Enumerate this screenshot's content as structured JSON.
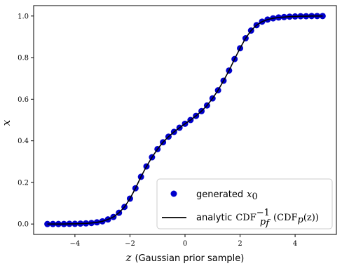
{
  "chart_data": {
    "type": "scatter",
    "xlabel_var": "z",
    "xlabel_text": "(Gaussian prior sample)",
    "ylabel": "x",
    "xlim": [
      -5.5,
      5.5
    ],
    "ylim": [
      -0.05,
      1.05
    ],
    "xticks": [
      -4,
      -2,
      0,
      2,
      4
    ],
    "xtick_labels": [
      "−4",
      "−2",
      "0",
      "2",
      "4"
    ],
    "yticks": [
      0.0,
      0.2,
      0.4,
      0.6,
      0.8,
      1.0
    ],
    "ytick_labels": [
      "0.0",
      "0.2",
      "0.4",
      "0.6",
      "0.8",
      "1.0"
    ],
    "grid": false,
    "legend_position": "bottom-right",
    "series": [
      {
        "name": "generated x0",
        "kind": "scatter",
        "color": "#0000cc",
        "x": [
          -5.0,
          -4.8,
          -4.6,
          -4.4,
          -4.2,
          -4.0,
          -3.8,
          -3.6,
          -3.4,
          -3.2,
          -3.0,
          -2.8,
          -2.6,
          -2.4,
          -2.2,
          -2.0,
          -1.8,
          -1.6,
          -1.4,
          -1.2,
          -1.0,
          -0.8,
          -0.6,
          -0.4,
          -0.2,
          0.0,
          0.2,
          0.4,
          0.6,
          0.8,
          1.0,
          1.2,
          1.4,
          1.6,
          1.8,
          2.0,
          2.2,
          2.4,
          2.6,
          2.8,
          3.0,
          3.2,
          3.4,
          3.6,
          3.8,
          4.0,
          4.2,
          4.4,
          4.6,
          4.8,
          5.0
        ],
        "y": [
          0.0,
          0.0,
          0.0,
          0.0,
          0.001,
          0.001,
          0.002,
          0.003,
          0.005,
          0.008,
          0.013,
          0.022,
          0.034,
          0.054,
          0.082,
          0.122,
          0.172,
          0.227,
          0.277,
          0.321,
          0.36,
          0.393,
          0.42,
          0.443,
          0.463,
          0.482,
          0.5,
          0.52,
          0.543,
          0.57,
          0.604,
          0.643,
          0.689,
          0.738,
          0.793,
          0.845,
          0.893,
          0.93,
          0.956,
          0.973,
          0.983,
          0.989,
          0.993,
          0.995,
          0.997,
          0.998,
          0.999,
          0.999,
          1.0,
          1.0,
          1.0
        ]
      },
      {
        "name": "analytic CDF_{p_f}^{-1}(CDF_p(z))",
        "kind": "line",
        "color": "#000000"
      }
    ]
  },
  "legend": {
    "scatter_text": "generated",
    "scatter_math": "x",
    "scatter_sub": "0",
    "line_text": "analytic",
    "line_math_1": "CDF",
    "line_sup": "−1",
    "line_sub_1": "p",
    "line_subsub": "f",
    "line_math_2": "(CDF",
    "line_sub_2": "p",
    "line_math_3": "(z))"
  }
}
